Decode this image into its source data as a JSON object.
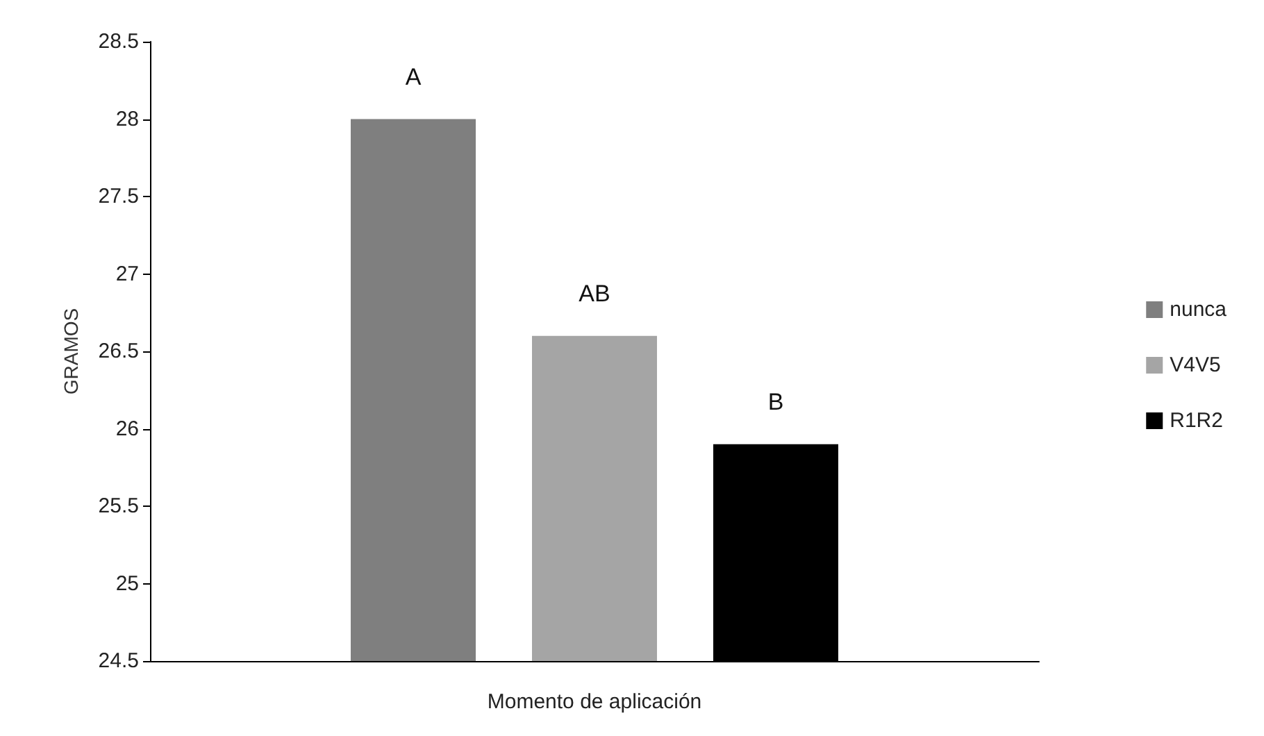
{
  "chart_data": {
    "type": "bar",
    "xlabel": "Momento de aplicación",
    "ylabel": "GRAMOS",
    "categories": [
      null
    ],
    "series": [
      {
        "name": "nunca",
        "color": "#7f7f7f",
        "values": [
          28.0
        ],
        "value_labels": [
          "A"
        ]
      },
      {
        "name": "V4V5",
        "color": "#a5a5a5",
        "values": [
          26.6
        ],
        "value_labels": [
          "AB"
        ]
      },
      {
        "name": "R1R2",
        "color": "#000000",
        "values": [
          25.9
        ],
        "value_labels": [
          "B"
        ]
      }
    ],
    "ylim": [
      24.5,
      28.5
    ],
    "yticks": [
      24.5,
      25,
      25.5,
      26,
      26.5,
      27,
      27.5,
      28,
      28.5
    ],
    "grid": false,
    "legend": "right"
  }
}
